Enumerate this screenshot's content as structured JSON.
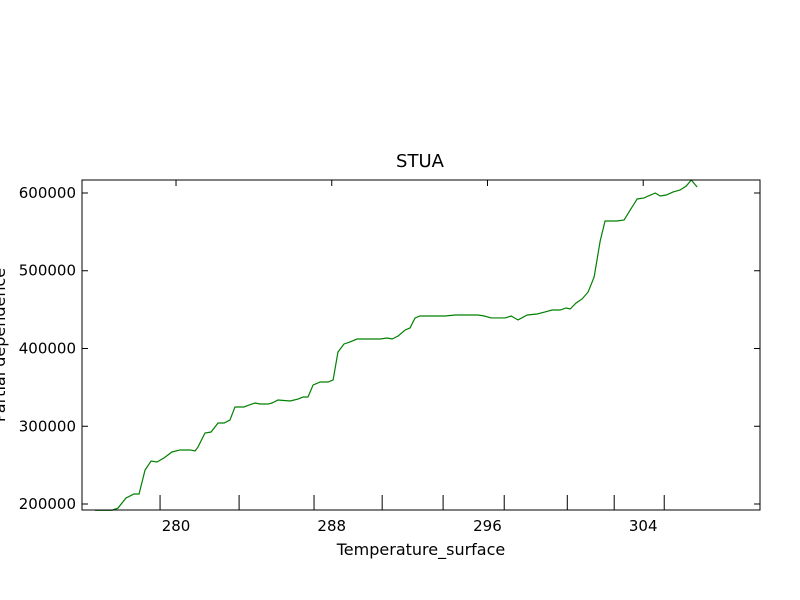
{
  "chart_data": {
    "type": "line",
    "title": "STUA",
    "x_label": "Temperature_surface",
    "y_label": "Partial dependence",
    "color": "#008000",
    "x": [
      275.84,
      276.71,
      277.02,
      277.43,
      277.84,
      278.1,
      278.41,
      278.72,
      279.02,
      279.38,
      279.79,
      280.21,
      280.72,
      280.98,
      281.13,
      281.49,
      281.8,
      282.16,
      282.47,
      282.77,
      283.03,
      283.49,
      283.75,
      284.06,
      284.32,
      284.73,
      284.93,
      285.24,
      285.86,
      286.27,
      286.53,
      286.78,
      287.04,
      287.4,
      287.81,
      288.07,
      288.32,
      288.63,
      288.94,
      289.3,
      290.48,
      290.84,
      291.1,
      291.41,
      291.77,
      292.02,
      292.28,
      292.54,
      293.82,
      294.34,
      295.52,
      295.83,
      296.19,
      296.91,
      297.22,
      297.57,
      298.04,
      298.55,
      298.96,
      299.32,
      299.73,
      300.04,
      300.25,
      300.55,
      300.86,
      301.17,
      301.48,
      301.79,
      302.04,
      302.66,
      303.02,
      303.33,
      303.69,
      304.05,
      304.26,
      304.62,
      304.87,
      305.18,
      305.54,
      305.9,
      306.21,
      306.47,
      306.77
    ],
    "values": [
      192000,
      192000,
      194800,
      207700,
      212900,
      212900,
      243700,
      255300,
      254000,
      259200,
      266900,
      269500,
      269500,
      268200,
      273400,
      291300,
      292600,
      304200,
      304200,
      308000,
      324800,
      324800,
      327300,
      329900,
      328600,
      328600,
      329900,
      333800,
      332500,
      335000,
      337600,
      337600,
      353000,
      356900,
      356900,
      359500,
      395500,
      405800,
      408400,
      412200,
      412200,
      413500,
      412200,
      416100,
      423800,
      426400,
      439300,
      441800,
      441800,
      443100,
      443100,
      441800,
      439300,
      439300,
      441800,
      436700,
      443100,
      444400,
      447000,
      449500,
      449500,
      452100,
      450800,
      458500,
      463700,
      472700,
      492000,
      538300,
      564000,
      564000,
      565300,
      578100,
      592300,
      593600,
      596100,
      600000,
      596100,
      597400,
      601300,
      603900,
      609000,
      616700,
      607700
    ],
    "deciles": [
      279.18,
      283.24,
      287.09,
      290.59,
      293.72,
      296.86,
      300.1,
      302.51,
      305.08
    ],
    "xlim": [
      275.17,
      310.0
    ],
    "ylim": [
      192300,
      616700
    ],
    "xticks": [
      280,
      288,
      296,
      304
    ],
    "yticks": [
      200000,
      300000,
      400000,
      500000,
      600000
    ]
  }
}
